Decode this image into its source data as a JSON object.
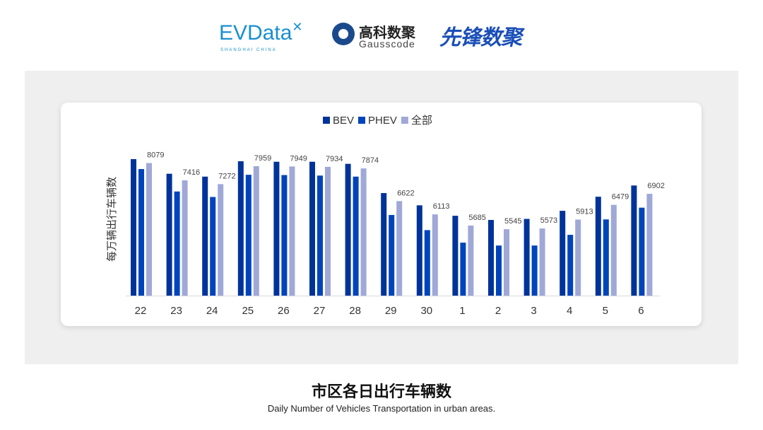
{
  "logos": {
    "evdata": "EVData",
    "evdata_sub": "SHANGHAI CHINA",
    "gauss_cn": "高科数聚",
    "gauss_en": "Gausscode",
    "xianfeng": "先锋数聚"
  },
  "title": "市区各日出行车辆数",
  "subtitle": "Daily Number of Vehicles Transportation in urban areas.",
  "chart_data": {
    "type": "bar",
    "title": "",
    "xlabel": "",
    "ylabel": "每万辆出行车辆数",
    "ylim": [
      3000,
      8500
    ],
    "grid": false,
    "legend_position": "top",
    "categories": [
      "22",
      "23",
      "24",
      "25",
      "26",
      "27",
      "28",
      "29",
      "30",
      "1",
      "2",
      "3",
      "4",
      "5",
      "6"
    ],
    "series": [
      {
        "name": "BEV",
        "color": "#003399",
        "values": [
          8230,
          7670,
          7560,
          8150,
          8130,
          8130,
          8050,
          6930,
          6460,
          6060,
          5900,
          5940,
          6250,
          6790,
          7220
        ]
      },
      {
        "name": "PHEV",
        "color": "#0044bb",
        "values": [
          7850,
          6990,
          6780,
          7630,
          7620,
          7600,
          7560,
          6090,
          5510,
          5030,
          4920,
          4920,
          5330,
          5920,
          6370
        ]
      },
      {
        "name": "全部",
        "color": "#a0a8d8",
        "values": [
          8079,
          7416,
          7272,
          7959,
          7949,
          7934,
          7874,
          6622,
          6113,
          5685,
          5545,
          5573,
          5913,
          6479,
          6902
        ],
        "data_labels": true
      }
    ]
  }
}
